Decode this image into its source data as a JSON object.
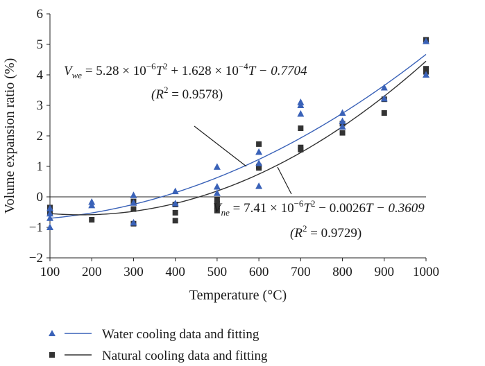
{
  "chart_data": {
    "type": "scatter",
    "title": "",
    "xlabel": "Temperature (°C)",
    "ylabel": "Volume expansion ratio (%)",
    "xlim": [
      100,
      1000
    ],
    "ylim": [
      -2,
      6
    ],
    "xticks": [
      100,
      200,
      300,
      400,
      500,
      600,
      700,
      800,
      900,
      1000
    ],
    "yticks": [
      -2,
      -1,
      0,
      1,
      2,
      3,
      4,
      5,
      6
    ],
    "grid": false,
    "legend_position": "bottom-left",
    "series": [
      {
        "name": "Water cooling data and fitting",
        "marker": "triangle",
        "color": "#3a62b8",
        "points": [
          [
            100,
            -0.38
          ],
          [
            100,
            -0.55
          ],
          [
            100,
            -0.7
          ],
          [
            100,
            -1.0
          ],
          [
            200,
            -0.17
          ],
          [
            200,
            -0.28
          ],
          [
            300,
            0.05
          ],
          [
            300,
            -0.2
          ],
          [
            300,
            -0.85
          ],
          [
            400,
            0.18
          ],
          [
            400,
            -0.22
          ],
          [
            500,
            0.98
          ],
          [
            500,
            0.33
          ],
          [
            500,
            0.12
          ],
          [
            600,
            1.47
          ],
          [
            600,
            1.1
          ],
          [
            600,
            0.35
          ],
          [
            700,
            3.1
          ],
          [
            700,
            3.0
          ],
          [
            700,
            2.72
          ],
          [
            800,
            2.75
          ],
          [
            800,
            2.48
          ],
          [
            800,
            2.3
          ],
          [
            900,
            3.58
          ],
          [
            900,
            3.22
          ],
          [
            1000,
            5.1
          ],
          [
            1000,
            4.0
          ]
        ],
        "fit": {
          "a": 5.28e-06,
          "b": 0.0001628,
          "c": -0.7704
        }
      },
      {
        "name": "Natural cooling data and fitting",
        "marker": "square",
        "color": "#333333",
        "points": [
          [
            100,
            -0.35
          ],
          [
            100,
            -0.5
          ],
          [
            200,
            -0.75
          ],
          [
            300,
            -0.15
          ],
          [
            300,
            -0.4
          ],
          [
            300,
            -0.88
          ],
          [
            400,
            -0.25
          ],
          [
            400,
            -0.52
          ],
          [
            400,
            -0.78
          ],
          [
            500,
            -0.1
          ],
          [
            500,
            -0.22
          ],
          [
            500,
            -0.32
          ],
          [
            500,
            -0.45
          ],
          [
            600,
            1.73
          ],
          [
            600,
            1.0
          ],
          [
            600,
            0.95
          ],
          [
            700,
            2.25
          ],
          [
            700,
            1.62
          ],
          [
            700,
            1.55
          ],
          [
            800,
            2.4
          ],
          [
            800,
            2.1
          ],
          [
            900,
            3.2
          ],
          [
            900,
            2.75
          ],
          [
            1000,
            5.15
          ],
          [
            1000,
            4.2
          ],
          [
            1000,
            4.1
          ]
        ],
        "fit": {
          "a": 7.41e-06,
          "b": -0.0026,
          "c": -0.3609
        }
      }
    ],
    "annotations": {
      "water_eq": {
        "lhs": "V",
        "sub": "we",
        "rhs_a": " = 5.28 × 10",
        "exp1": "−6",
        "rhs_b": "T",
        "exp2": "2",
        "rhs_c": " + 1.628 × 10",
        "exp3": "−4",
        "rhs_d": "T − 0.7704",
        "r2_open": "(R",
        "r2_exp": "2",
        "r2_close": " = 0.9578)"
      },
      "natural_eq": {
        "lhs": "V",
        "sub": "ne",
        "rhs_a": " = 7.41 × 10",
        "exp1": "−6",
        "rhs_b": "T",
        "exp2": "2",
        "rhs_c": " − 0.0026",
        "rhs_d": "T − 0.3609",
        "r2_open": "(R",
        "r2_exp": "2",
        "r2_close": " = 0.9729)"
      }
    }
  }
}
